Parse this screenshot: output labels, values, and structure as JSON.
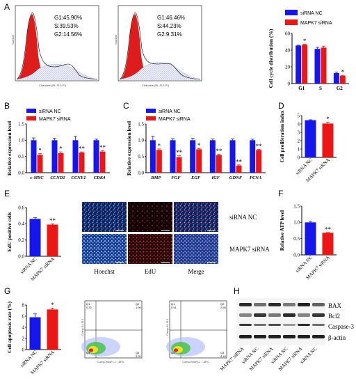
{
  "panels": {
    "A": "A",
    "B": "B",
    "C": "C",
    "D": "D",
    "E": "E",
    "F": "F",
    "G": "G",
    "H": "H"
  },
  "colors": {
    "nc": "#1515ee",
    "si": "#ee1515"
  },
  "legend": {
    "nc": "siRNA NC",
    "si": "MAPK7 siRNA"
  },
  "a_histograms": [
    {
      "g1": "G1:45.90%",
      "s": "S:39.53%",
      "g2": "G2:14.56%",
      "xlabel": "Channels (BL-FL3-PI)",
      "ylabel": "Number"
    },
    {
      "g1": "G1:46.46%",
      "s": "S:44.23%",
      "g2": "G2:9.31%",
      "xlabel": "Channels (BL-FL3-PI)",
      "ylabel": "Number"
    }
  ],
  "e_images": {
    "cols": [
      "Hoechst",
      "EdU",
      "Merge"
    ],
    "rows": [
      "siRNA NC",
      "MAPK7 siRNA"
    ]
  },
  "g_flow": [
    {
      "q1": "Q1",
      "q2": "Q2",
      "q3": "Q3",
      "q4": "Q4",
      "v1": "0.32",
      "v2": "1.96",
      "v3": "3.32",
      "xlabel": "Comp-RedFL1 :: APC",
      "ylabel": "Comp-BL FL1"
    },
    {
      "q1": "Q1",
      "q2": "Q2",
      "q3": "Q3",
      "q4": "Q4",
      "v1": "0.51",
      "v2": "2.65",
      "v3": "4.49",
      "xlabel": "Comp-RedFL1 :: APC",
      "ylabel": "Comp-BL FL1"
    }
  ],
  "h_blot": {
    "proteins": [
      "BAX",
      "Bcl2",
      "Caspase-3",
      "β-actin"
    ],
    "lanes": [
      "MAPK7 siRNA",
      "siRNA NC",
      "MAPK7 siRNA",
      "siRNA NC",
      "MAPK7 siRNA",
      "siRNA NC"
    ]
  },
  "chart_data": [
    {
      "id": "A",
      "type": "bar",
      "ylabel": "Cell cycle distribution (%)",
      "categories": [
        "G1",
        "S",
        "G2"
      ],
      "ylim": [
        0,
        60
      ],
      "yticks": [
        0,
        20,
        40,
        60
      ],
      "group_labels": "bold",
      "series": [
        {
          "name": "siRNA NC",
          "values": [
            45.5,
            41.5,
            12.5
          ],
          "errors": [
            0.5,
            1.8,
            1.2
          ]
        },
        {
          "name": "MAPK7 siRNA",
          "values": [
            46.5,
            43,
            9.3
          ],
          "errors": [
            0.6,
            1.8,
            0.5
          ]
        }
      ],
      "stars": [
        {
          "category": "G1",
          "label": "*"
        },
        {
          "category": "G2",
          "label": "*"
        }
      ]
    },
    {
      "id": "B",
      "type": "bar",
      "ylabel": "Relative expression level",
      "categories": [
        "c-MYC",
        "CCND1",
        "CCNE1",
        "CDK4"
      ],
      "ylim": [
        0,
        1.5
      ],
      "yticks": [
        0,
        0.5,
        1,
        1.5
      ],
      "ytick_labels": [
        "0.0",
        "0.5",
        "1.0",
        "1.5"
      ],
      "italic_cats": true,
      "series": [
        {
          "name": "siRNA NC",
          "values": [
            1.0,
            1.0,
            1.0,
            1.0
          ],
          "errors": [
            0.07,
            0.06,
            0.12,
            0.03
          ]
        },
        {
          "name": "MAPK7 siRNA",
          "values": [
            0.55,
            0.6,
            0.62,
            0.65
          ],
          "errors": [
            0.04,
            0.04,
            0.02,
            0.03
          ]
        }
      ],
      "stars": [
        {
          "category": "c-MYC",
          "label": "*"
        },
        {
          "category": "CCND1",
          "label": "*"
        },
        {
          "category": "CCNE1",
          "label": "**"
        },
        {
          "category": "CDK4",
          "label": "**"
        }
      ]
    },
    {
      "id": "C",
      "type": "bar",
      "ylabel": "Relative expression level",
      "categories": [
        "BMP",
        "FGF",
        "EGF",
        "IGF",
        "GDNF",
        "PCNA"
      ],
      "ylim": [
        0,
        1.5
      ],
      "yticks": [
        0,
        0.5,
        1,
        1.5
      ],
      "ytick_labels": [
        "0.0",
        "0.5",
        "1.0",
        "1.5"
      ],
      "italic_cats": true,
      "series": [
        {
          "name": "siRNA NC",
          "values": [
            1.0,
            1.0,
            1.0,
            1.0,
            1.0,
            1.0
          ],
          "errors": [
            0.12,
            0.05,
            0.06,
            0.04,
            0.04,
            0.03
          ]
        },
        {
          "name": "MAPK7 siRNA",
          "values": [
            0.7,
            0.48,
            0.72,
            0.54,
            0.22,
            0.7
          ],
          "errors": [
            0.03,
            0.05,
            0.02,
            0.03,
            0.02,
            0.02
          ]
        }
      ],
      "stars": [
        {
          "category": "BMP",
          "label": "*"
        },
        {
          "category": "FGF",
          "label": "**"
        },
        {
          "category": "EGF",
          "label": "*"
        },
        {
          "category": "IGF",
          "label": "**"
        },
        {
          "category": "GDNF",
          "label": "**"
        },
        {
          "category": "PCNA",
          "label": "**"
        }
      ]
    },
    {
      "id": "D",
      "type": "bar",
      "ylabel": "Cell proliferation index",
      "categories": [
        "siRNA NC",
        "MAPK7 siRNA"
      ],
      "ylim": [
        0,
        5
      ],
      "yticks": [
        0,
        1,
        2,
        3,
        4,
        5
      ],
      "rotated_cats": true,
      "series": [
        {
          "name": "bars",
          "values": [
            4.45,
            4.05
          ],
          "errors": [
            0.05,
            0.15
          ]
        }
      ],
      "stars": [
        {
          "category": "MAPK7 siRNA",
          "label": "*"
        }
      ]
    },
    {
      "id": "E",
      "type": "bar",
      "ylabel": "EdU positive cells",
      "categories": [
        "siRNA NC",
        "MAPK7 siRNA"
      ],
      "ylim": [
        0,
        0.6
      ],
      "yticks": [
        0,
        0.2,
        0.4,
        0.6
      ],
      "ytick_labels": [
        "0.0",
        "0.2",
        "0.4",
        "0.6"
      ],
      "rotated_cats": true,
      "series": [
        {
          "name": "bars",
          "values": [
            0.46,
            0.39
          ],
          "errors": [
            0.015,
            0.007
          ]
        }
      ],
      "stars": [
        {
          "category": "MAPK7 siRNA",
          "label": "**"
        }
      ]
    },
    {
      "id": "F",
      "type": "bar",
      "ylabel": "Relative ATP level",
      "categories": [
        "siRNA NC",
        "MAPK7 siRNA"
      ],
      "ylim": [
        0,
        1.5
      ],
      "yticks": [
        0,
        0.5,
        1,
        1.5
      ],
      "ytick_labels": [
        "0.0",
        "0.5",
        "1.0",
        "1.5"
      ],
      "rotated_cats": true,
      "series": [
        {
          "name": "bars",
          "values": [
            1.0,
            0.68
          ],
          "errors": [
            0.02,
            0.01
          ]
        }
      ],
      "stars": [
        {
          "category": "MAPK7 siRNA",
          "label": "**"
        }
      ]
    },
    {
      "id": "G",
      "type": "bar",
      "ylabel": "Cell apoptosis rate (%)",
      "categories": [
        "siRNA NC",
        "MAPK7 siRNA"
      ],
      "ylim": [
        0,
        8
      ],
      "yticks": [
        0,
        2,
        4,
        6,
        8
      ],
      "rotated_cats": true,
      "series": [
        {
          "name": "bars",
          "values": [
            5.8,
            7.2
          ],
          "errors": [
            0.6,
            0.25
          ]
        }
      ],
      "stars": [
        {
          "category": "MAPK7 siRNA",
          "label": "*"
        }
      ]
    }
  ]
}
